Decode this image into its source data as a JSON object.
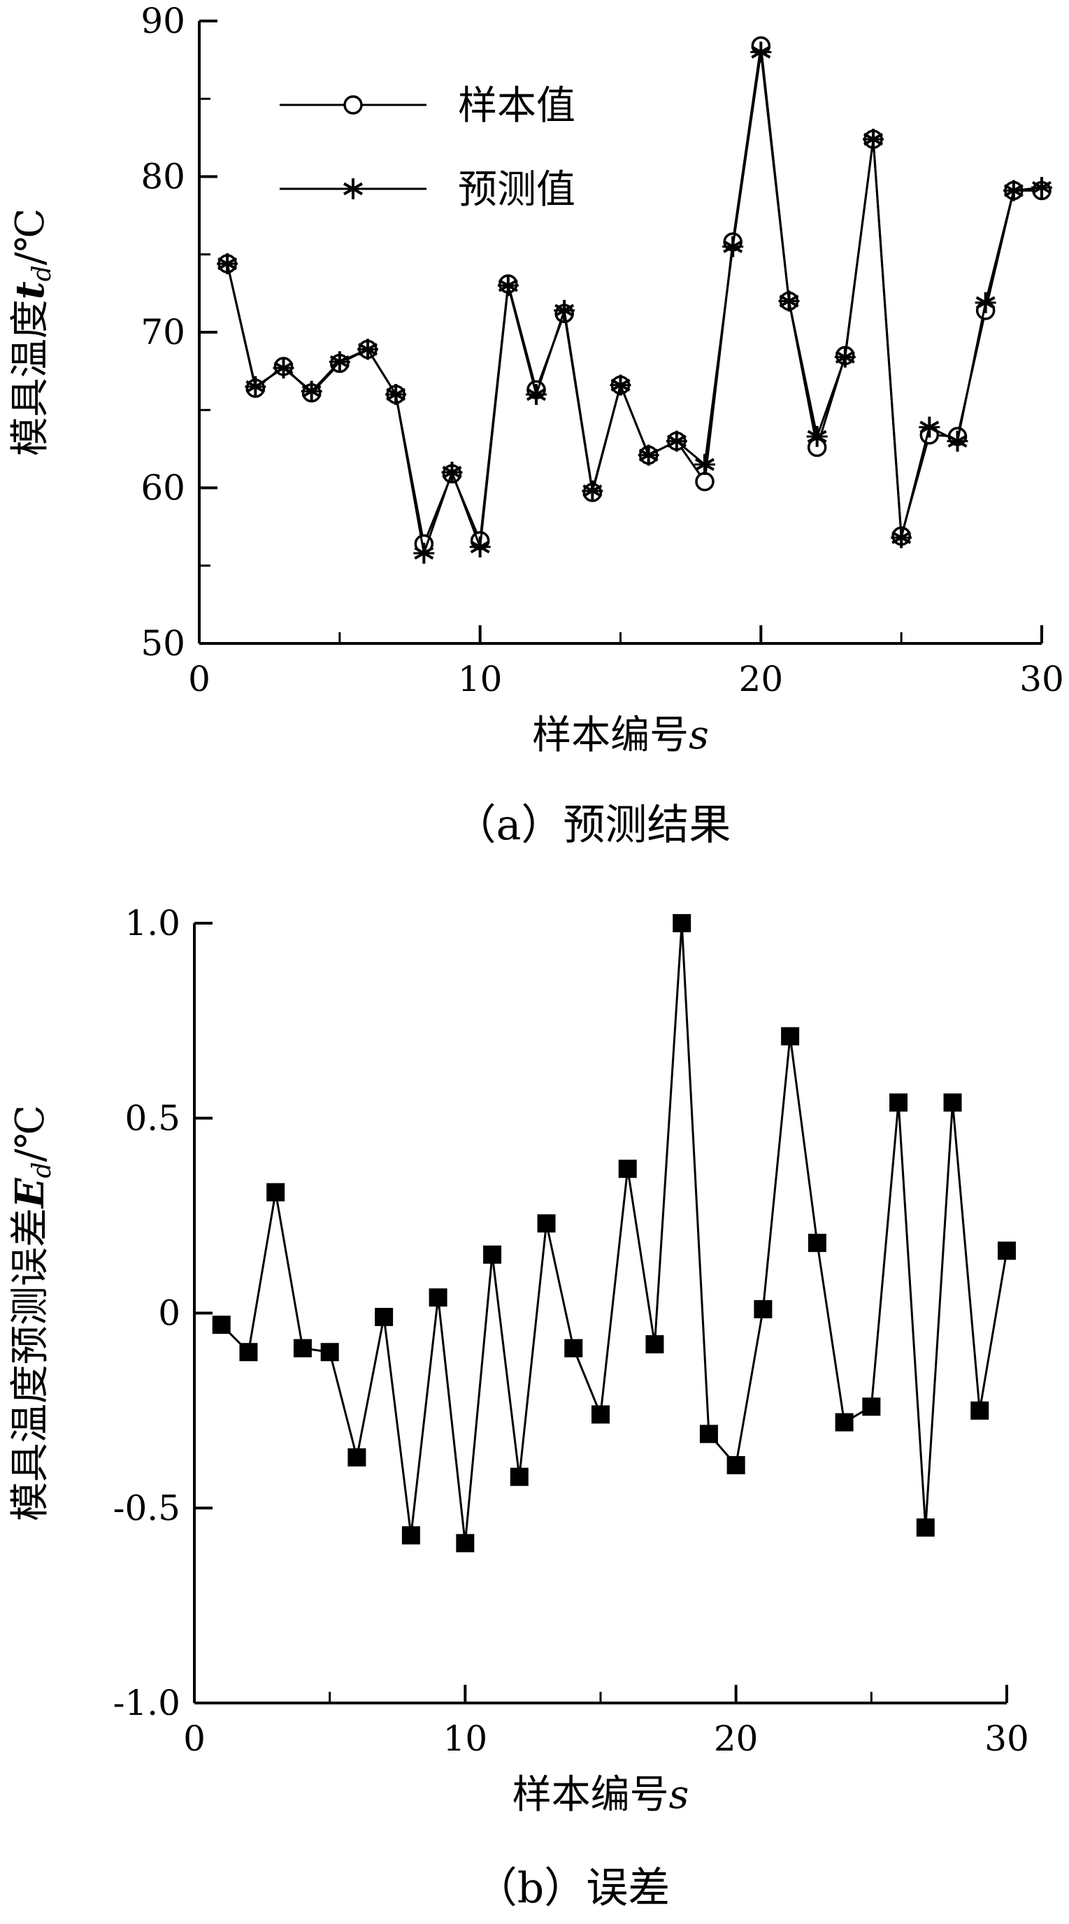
{
  "chart_data": [
    {
      "type": "line",
      "caption": "（a）预测结果",
      "xlabel": "样本编号",
      "xlabel_var": "s",
      "ylabel": "模具温度",
      "ylabel_var": "t",
      "ylabel_sub": "d",
      "ylabel_unit": "/℃",
      "xlim": [
        0,
        30
      ],
      "ylim": [
        50,
        90
      ],
      "xticks": [
        0,
        10,
        20,
        30
      ],
      "xtick_labels": [
        "0",
        "10",
        "20",
        "30"
      ],
      "yticks": [
        50,
        60,
        70,
        80,
        90
      ],
      "ytick_labels": [
        "50",
        "60",
        "70",
        "80",
        "90"
      ],
      "legend_position": "top-left",
      "x": [
        1,
        2,
        3,
        4,
        5,
        6,
        7,
        8,
        9,
        10,
        11,
        12,
        13,
        14,
        15,
        16,
        17,
        18,
        19,
        20,
        21,
        22,
        23,
        24,
        25,
        26,
        27,
        28,
        29,
        30
      ],
      "series": [
        {
          "name": "样本值",
          "marker": "circle",
          "values": [
            74.4,
            66.4,
            67.8,
            66.1,
            68.0,
            68.9,
            66.0,
            56.4,
            60.9,
            56.6,
            73.1,
            66.3,
            71.2,
            59.7,
            66.6,
            62.1,
            63.0,
            60.4,
            75.8,
            88.4,
            72.0,
            62.6,
            68.5,
            82.4,
            56.9,
            63.4,
            63.3,
            71.4,
            79.1,
            79.1
          ]
        },
        {
          "name": "预测值",
          "marker": "asterisk",
          "values": [
            74.4,
            66.5,
            67.7,
            66.2,
            68.1,
            68.9,
            66.0,
            55.8,
            61.0,
            56.2,
            73.0,
            66.0,
            71.4,
            59.8,
            66.6,
            62.1,
            63.0,
            61.5,
            75.5,
            88.0,
            72.0,
            63.3,
            68.4,
            82.4,
            56.8,
            63.9,
            63.0,
            71.9,
            79.1,
            79.3
          ]
        }
      ]
    },
    {
      "type": "line",
      "caption": "（b）误差",
      "xlabel": "样本编号",
      "xlabel_var": "s",
      "ylabel": "模具温度预测误差",
      "ylabel_var": "E",
      "ylabel_sub": "d",
      "ylabel_unit": "/℃",
      "xlim": [
        0,
        30
      ],
      "ylim": [
        -1.0,
        1.0
      ],
      "xticks": [
        0,
        10,
        20,
        30
      ],
      "xtick_labels": [
        "0",
        "10",
        "20",
        "30"
      ],
      "yticks": [
        -1.0,
        -0.5,
        0,
        0.5,
        1.0
      ],
      "ytick_labels": [
        "-1.0",
        "-0.5",
        "0",
        "0.5",
        "1.0"
      ],
      "x": [
        1,
        2,
        3,
        4,
        5,
        6,
        7,
        8,
        9,
        10,
        11,
        12,
        13,
        14,
        15,
        16,
        17,
        18,
        19,
        20,
        21,
        22,
        23,
        24,
        25,
        26,
        27,
        28,
        29,
        30
      ],
      "series": [
        {
          "marker": "square",
          "values": [
            -0.03,
            -0.1,
            0.31,
            -0.09,
            -0.1,
            -0.37,
            -0.01,
            -0.57,
            0.04,
            -0.59,
            0.15,
            -0.42,
            0.23,
            -0.09,
            -0.26,
            0.37,
            -0.08,
            1.0,
            -0.31,
            -0.39,
            0.01,
            0.71,
            0.18,
            -0.28,
            -0.24,
            0.54,
            -0.55,
            0.54,
            -0.25,
            0.16
          ]
        }
      ]
    }
  ]
}
